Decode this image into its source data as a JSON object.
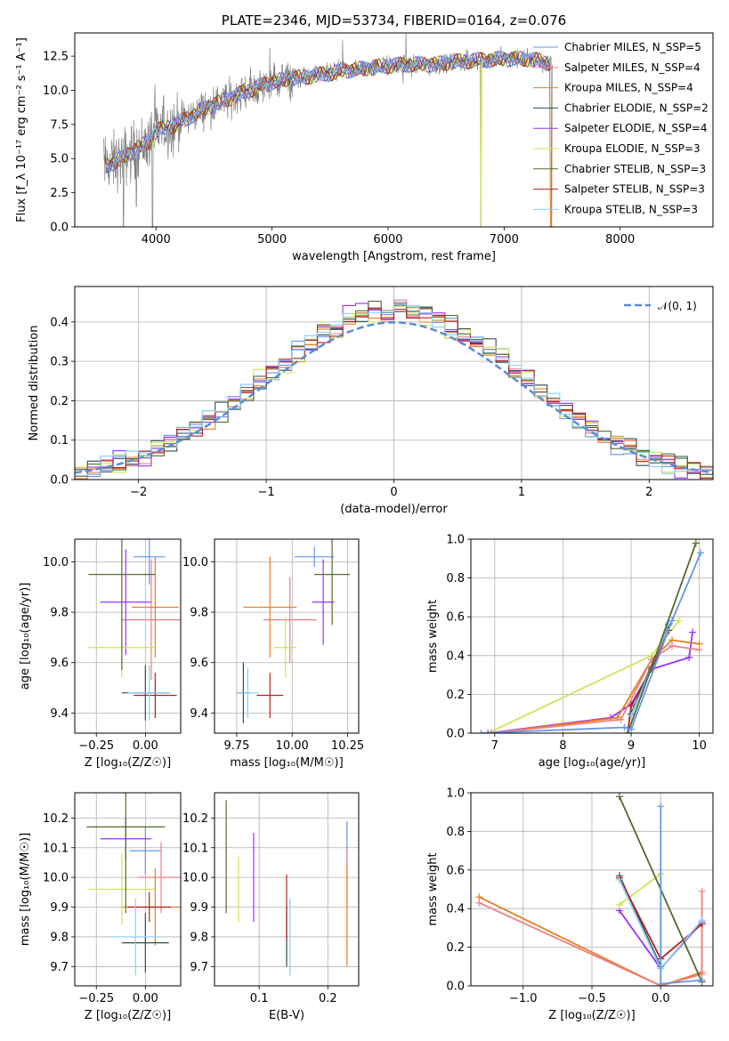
{
  "colors": {
    "chabrier_miles": "#6495ed",
    "salpeter_miles": "#f08080",
    "kroupa_miles": "#e67e22",
    "chabrier_elodie": "#2f4f4f",
    "salpeter_elodie": "#9b30ff",
    "kroupa_elodie": "#d4e157",
    "chabrier_stelib": "#556b2f",
    "salpeter_stelib": "#b22222",
    "kroupa_stelib": "#87cefa",
    "data": "#808080",
    "gaussian": "#5b8bd4"
  },
  "chart_data": [
    {
      "type": "line",
      "id": "spectrum",
      "title": "PLATE=2346, MJD=53734, FIBERID=0164, z=0.076",
      "xlabel": "wavelength [Angstrom, rest frame]",
      "ylabel": "Flux [f_λ 10⁻¹⁷ erg cm⁻² s⁻¹ A⁻¹]",
      "xlim": [
        3300,
        8800
      ],
      "ylim": [
        0,
        14.2
      ],
      "xticks": [
        "4000",
        "5000",
        "6000",
        "7000",
        "8000"
      ],
      "yticks": [
        "0.0",
        "2.5",
        "5.0",
        "7.5",
        "10.0",
        "12.5"
      ],
      "legend_position": "right",
      "legend": [
        {
          "label": "Chabrier MILES, N_SSP=5",
          "color_key": "chabrier_miles"
        },
        {
          "label": "Salpeter MILES, N_SSP=4",
          "color_key": "salpeter_miles"
        },
        {
          "label": "Kroupa MILES, N_SSP=4",
          "color_key": "kroupa_miles"
        },
        {
          "label": "Chabrier ELODIE, N_SSP=2",
          "color_key": "chabrier_elodie"
        },
        {
          "label": "Salpeter ELODIE, N_SSP=4",
          "color_key": "salpeter_elodie"
        },
        {
          "label": "Kroupa ELODIE, N_SSP=3",
          "color_key": "kroupa_elodie"
        },
        {
          "label": "Chabrier STELIB, N_SSP=3",
          "color_key": "chabrier_stelib"
        },
        {
          "label": "Salpeter STELIB, N_SSP=3",
          "color_key": "salpeter_stelib"
        },
        {
          "label": "Kroupa STELIB, N_SSP=3",
          "color_key": "kroupa_stelib"
        }
      ],
      "continuum": {
        "x": [
          3550,
          3700,
          3850,
          3950,
          4000,
          4200,
          4400,
          4600,
          4800,
          5000,
          5200,
          5400,
          5600,
          5800,
          6000,
          6200,
          6400,
          6600,
          6800,
          7000,
          7200,
          7400
        ],
        "y": [
          4.4,
          5.0,
          5.8,
          6.3,
          7.0,
          7.6,
          8.6,
          9.3,
          10.0,
          10.6,
          10.9,
          11.1,
          11.4,
          11.6,
          11.8,
          11.9,
          11.9,
          12.1,
          12.2,
          12.3,
          12.3,
          12.0
        ]
      },
      "absorption_dips": [
        {
          "x": 3720,
          "y": 0.0
        },
        {
          "x": 3830,
          "y": 1.5
        },
        {
          "x": 3970,
          "y": 0.0
        },
        {
          "x": 6800,
          "y": 0.0
        },
        {
          "x": 7410,
          "y": 0.0
        }
      ]
    },
    {
      "type": "histogram",
      "id": "residuals",
      "xlabel": "(data-model)/error",
      "ylabel": "Normed distribution",
      "xlim": [
        -2.5,
        2.5
      ],
      "ylim": [
        0,
        0.49
      ],
      "xticks": [
        "−2",
        "−1",
        "0",
        "1",
        "2"
      ],
      "yticks": [
        "0.0",
        "0.1",
        "0.2",
        "0.3",
        "0.4"
      ],
      "legend_position": "top-right",
      "legend": [
        {
          "label": "𝒩(0, 1)",
          "color_key": "gaussian"
        }
      ],
      "bin_width": 0.1
    },
    {
      "type": "scatter",
      "id": "age_vs_Z",
      "xlabel": "Z [log₁₀(Z/Z☉)]",
      "ylabel": "age  [log₁₀(age/yr)]",
      "xlim": [
        -0.36,
        0.18
      ],
      "ylim": [
        9.32,
        10.09
      ],
      "xticks": [
        "−0.25",
        "0.00"
      ],
      "yticks": [
        "9.4",
        "9.6",
        "9.8",
        "10.0"
      ],
      "points": [
        {
          "color_key": "chabrier_miles",
          "x": 0.02,
          "y": 10.02,
          "xerr": 0.08,
          "yerr": 0.11
        },
        {
          "color_key": "salpeter_miles",
          "x": 0.03,
          "y": 9.77,
          "xerr": 0.15,
          "yerr": 0.24
        },
        {
          "color_key": "kroupa_miles",
          "x": 0.05,
          "y": 9.82,
          "xerr": 0.12,
          "yerr": 0.2
        },
        {
          "color_key": "chabrier_elodie",
          "x": 0.0,
          "y": 9.48,
          "xerr": 0.12,
          "yerr": 0.11
        },
        {
          "color_key": "salpeter_elodie",
          "x": -0.1,
          "y": 9.84,
          "xerr": 0.13,
          "yerr": 0.21
        },
        {
          "color_key": "kroupa_elodie",
          "x": -0.12,
          "y": 9.66,
          "xerr": 0.17,
          "yerr": 0.12
        },
        {
          "color_key": "chabrier_stelib",
          "x": -0.12,
          "y": 9.95,
          "xerr": 0.17,
          "yerr": 0.38
        },
        {
          "color_key": "salpeter_stelib",
          "x": 0.05,
          "y": 9.47,
          "xerr": 0.11,
          "yerr": 0.09
        },
        {
          "color_key": "kroupa_stelib",
          "x": 0.02,
          "y": 9.48,
          "xerr": 0.11,
          "yerr": 0.11
        }
      ]
    },
    {
      "type": "scatter",
      "id": "age_vs_mass",
      "xlabel": "mass [log₁₀(M/M☉)]",
      "ylabel": "",
      "xlim": [
        9.65,
        10.3
      ],
      "ylim": [
        9.32,
        10.09
      ],
      "xticks": [
        "9.75",
        "10.00",
        "10.25"
      ],
      "yticks": [
        "9.4",
        "9.6",
        "9.8",
        "10.0"
      ],
      "points": [
        {
          "color_key": "chabrier_miles",
          "x": 10.1,
          "y": 10.02,
          "xerr": 0.09,
          "yerr": 0.04
        },
        {
          "color_key": "salpeter_miles",
          "x": 9.99,
          "y": 9.77,
          "xerr": 0.12,
          "yerr": 0.17
        },
        {
          "color_key": "kroupa_miles",
          "x": 9.9,
          "y": 9.82,
          "xerr": 0.12,
          "yerr": 0.2
        },
        {
          "color_key": "chabrier_elodie",
          "x": 9.78,
          "y": 9.48,
          "xerr": 0.03,
          "yerr": 0.12
        },
        {
          "color_key": "salpeter_elodie",
          "x": 10.14,
          "y": 9.84,
          "xerr": 0.05,
          "yerr": 0.17
        },
        {
          "color_key": "kroupa_elodie",
          "x": 9.97,
          "y": 9.66,
          "xerr": 0.05,
          "yerr": 0.12
        },
        {
          "color_key": "chabrier_stelib",
          "x": 10.18,
          "y": 9.95,
          "xerr": 0.08,
          "yerr": 0.2
        },
        {
          "color_key": "salpeter_stelib",
          "x": 9.9,
          "y": 9.47,
          "xerr": 0.06,
          "yerr": 0.09
        },
        {
          "color_key": "kroupa_stelib",
          "x": 9.8,
          "y": 9.48,
          "xerr": 0.05,
          "yerr": 0.1
        }
      ]
    },
    {
      "type": "line",
      "id": "mass_weight_vs_age",
      "xlabel": "age  [log₁₀(age/yr)]",
      "ylabel": "mass weight",
      "xlim": [
        6.65,
        10.2
      ],
      "ylim": [
        0,
        1
      ],
      "xticks": [
        "7",
        "8",
        "9",
        "10"
      ],
      "yticks": [
        "0.0",
        "0.2",
        "0.4",
        "0.6",
        "0.8",
        "1.0"
      ],
      "series": [
        {
          "color_key": "kroupa_elodie",
          "x": [
            6.9,
            9.3,
            9.7
          ],
          "y": [
            0.0,
            0.4,
            0.58
          ]
        },
        {
          "color_key": "salpeter_elodie",
          "x": [
            6.9,
            8.7,
            9.0,
            9.3,
            9.85,
            9.9
          ],
          "y": [
            0.0,
            0.08,
            0.15,
            0.33,
            0.39,
            0.52
          ]
        },
        {
          "color_key": "kroupa_miles",
          "x": [
            6.95,
            8.8,
            9.3,
            9.6,
            10.0
          ],
          "y": [
            0.0,
            0.08,
            0.38,
            0.48,
            0.46
          ]
        },
        {
          "color_key": "salpeter_miles",
          "x": [
            6.95,
            8.85,
            9.3,
            9.6,
            10.0
          ],
          "y": [
            0.0,
            0.07,
            0.38,
            0.45,
            0.43
          ]
        },
        {
          "color_key": "salpeter_stelib",
          "x": [
            8.95,
            9.0,
            9.3,
            9.55
          ],
          "y": [
            0.0,
            0.14,
            0.33,
            0.53
          ]
        },
        {
          "color_key": "chabrier_elodie",
          "x": [
            9.0,
            9.55
          ],
          "y": [
            0.1,
            0.56
          ]
        },
        {
          "color_key": "kroupa_stelib",
          "x": [
            9.0,
            9.3,
            9.55
          ],
          "y": [
            0.09,
            0.34,
            0.57
          ]
        },
        {
          "color_key": "chabrier_stelib",
          "x": [
            8.95,
            9.3,
            9.95
          ],
          "y": [
            0.0,
            0.34,
            0.98
          ]
        },
        {
          "color_key": "chabrier_miles",
          "x": [
            6.8,
            8.9,
            9.0,
            9.6,
            10.02
          ],
          "y": [
            0.0,
            0.03,
            0.02,
            0.58,
            0.93
          ]
        }
      ]
    },
    {
      "type": "scatter",
      "id": "mass_vs_Z",
      "xlabel": "Z [log₁₀(Z/Z☉)]",
      "ylabel": "mass [log₁₀(M/M☉)]",
      "xlim": [
        -0.36,
        0.18
      ],
      "ylim": [
        9.635,
        10.285
      ],
      "xticks": [
        "−0.25",
        "0.00"
      ],
      "yticks": [
        "9.7",
        "9.8",
        "9.9",
        "10.0",
        "10.1",
        "10.2"
      ],
      "points": [
        {
          "color_key": "chabrier_miles",
          "x": -0.0,
          "y": 10.09,
          "xerr": 0.08,
          "yerr": 0.08
        },
        {
          "color_key": "salpeter_miles",
          "x": 0.08,
          "y": 10.0,
          "xerr": 0.12,
          "yerr": 0.12
        },
        {
          "color_key": "kroupa_miles",
          "x": 0.05,
          "y": 9.9,
          "xerr": 0.17,
          "yerr": 0.13
        },
        {
          "color_key": "chabrier_elodie",
          "x": 0.0,
          "y": 9.78,
          "xerr": 0.12,
          "yerr": 0.1
        },
        {
          "color_key": "salpeter_elodie",
          "x": -0.1,
          "y": 10.13,
          "xerr": 0.13,
          "yerr": 0.07
        },
        {
          "color_key": "kroupa_elodie",
          "x": -0.12,
          "y": 9.96,
          "xerr": 0.17,
          "yerr": 0.12
        },
        {
          "color_key": "chabrier_stelib",
          "x": -0.1,
          "y": 10.17,
          "xerr": 0.2,
          "yerr": 0.29
        },
        {
          "color_key": "salpeter_stelib",
          "x": 0.02,
          "y": 9.9,
          "xerr": 0.11,
          "yerr": 0.05
        },
        {
          "color_key": "kroupa_stelib",
          "x": -0.05,
          "y": 9.8,
          "xerr": 0.13,
          "yerr": 0.13
        }
      ]
    },
    {
      "type": "scatter",
      "id": "mass_vs_ebv",
      "xlabel": "E(B-V)",
      "ylabel": "",
      "xlim": [
        0.035,
        0.245
      ],
      "ylim": [
        9.635,
        10.285
      ],
      "xticks": [
        "0.1",
        "0.2"
      ],
      "yticks": [
        "9.7",
        "9.8",
        "9.9",
        "10.0",
        "10.1",
        "10.2"
      ],
      "points": [
        {
          "color_key": "chabrier_miles",
          "x": 0.228,
          "y": 10.1,
          "xerr": 0.0,
          "yerr": 0.09
        },
        {
          "color_key": "salpeter_miles",
          "x": 0.228,
          "y": 10.0,
          "xerr": 0.0,
          "yerr": 0.1
        },
        {
          "color_key": "kroupa_miles",
          "x": 0.228,
          "y": 9.87,
          "xerr": 0.0,
          "yerr": 0.17
        },
        {
          "color_key": "chabrier_elodie",
          "x": 0.14,
          "y": 9.8,
          "xerr": 0.0,
          "yerr": 0.1
        },
        {
          "color_key": "salpeter_elodie",
          "x": 0.092,
          "y": 10.0,
          "xerr": 0.0,
          "yerr": 0.15
        },
        {
          "color_key": "kroupa_elodie",
          "x": 0.07,
          "y": 9.96,
          "xerr": 0.0,
          "yerr": 0.11
        },
        {
          "color_key": "chabrier_stelib",
          "x": 0.052,
          "y": 10.07,
          "xerr": 0.0,
          "yerr": 0.19
        },
        {
          "color_key": "salpeter_stelib",
          "x": 0.14,
          "y": 9.9,
          "xerr": 0.0,
          "yerr": 0.11
        },
        {
          "color_key": "kroupa_stelib",
          "x": 0.145,
          "y": 9.8,
          "xerr": 0.0,
          "yerr": 0.13
        }
      ]
    },
    {
      "type": "line",
      "id": "mass_weight_vs_Z",
      "xlabel": "Z [log₁₀(Z/Z☉)]",
      "ylabel": "mass weight",
      "xlim": [
        -1.38,
        0.38
      ],
      "ylim": [
        0,
        1
      ],
      "xticks": [
        "−1.0",
        "−0.5",
        "0.0"
      ],
      "yticks": [
        "0.0",
        "0.2",
        "0.4",
        "0.6",
        "0.8",
        "1.0"
      ],
      "series": [
        {
          "color_key": "kroupa_miles",
          "x": [
            -1.32,
            0.0,
            0.3,
            0.3
          ],
          "y": [
            0.46,
            0.0,
            0.07,
            0.32
          ]
        },
        {
          "color_key": "salpeter_miles",
          "x": [
            -1.32,
            0.0,
            0.3,
            0.3
          ],
          "y": [
            0.43,
            0.0,
            0.06,
            0.49
          ]
        },
        {
          "color_key": "salpeter_elodie",
          "x": [
            -0.3,
            0.0,
            0.3
          ],
          "y": [
            0.39,
            0.09,
            0.33
          ]
        },
        {
          "color_key": "kroupa_elodie",
          "x": [
            -0.3,
            0.0,
            0.0
          ],
          "y": [
            0.42,
            0.58,
            0.0
          ]
        },
        {
          "color_key": "chabrier_elodie",
          "x": [
            -0.3,
            0.0
          ],
          "y": [
            0.57,
            0.1
          ]
        },
        {
          "color_key": "salpeter_stelib",
          "x": [
            -0.3,
            0.0,
            0.3
          ],
          "y": [
            0.56,
            0.14,
            0.32
          ]
        },
        {
          "color_key": "kroupa_stelib",
          "x": [
            -0.3,
            0.0,
            0.3
          ],
          "y": [
            0.55,
            0.09,
            0.34
          ]
        },
        {
          "color_key": "chabrier_stelib",
          "x": [
            -0.3,
            0.3
          ],
          "y": [
            0.98,
            0.02
          ]
        },
        {
          "color_key": "chabrier_miles",
          "x": [
            0.0,
            0.0,
            0.3
          ],
          "y": [
            0.93,
            0.01,
            0.03
          ]
        }
      ]
    }
  ]
}
